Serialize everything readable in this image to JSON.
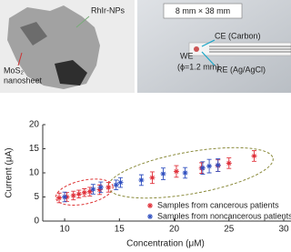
{
  "photos": {
    "left": {
      "label_particles": "RhIr-NPs",
      "label_sheet": [
        "MoS₂",
        "nanosheet"
      ]
    },
    "right": {
      "size": "8 mm × 38 mm",
      "ce": "CE (Carbon)",
      "we": [
        "WE",
        "(ϕ=1.2 mm)"
      ],
      "re": "RE (Ag/AgCl)"
    }
  },
  "chart_data": {
    "type": "scatter",
    "xlabel": "Concentration (μM)",
    "ylabel": "Current (μA)",
    "xlim": [
      8,
      30
    ],
    "ylim": [
      0,
      20
    ],
    "xticks": [
      10,
      15,
      20,
      25,
      30
    ],
    "yticks": [
      0,
      5,
      10,
      15,
      20
    ],
    "legend": "lower right",
    "series": [
      {
        "name": "Samples from cancerous patients",
        "color": "#e0303a",
        "x": [
          9.5,
          10.2,
          10.8,
          11.3,
          11.8,
          12.3,
          13.2,
          14.0,
          18.0,
          20.2,
          22.5,
          24.0,
          25.0,
          27.3
        ],
        "values": [
          4.8,
          5.0,
          5.3,
          5.6,
          5.9,
          6.1,
          6.5,
          7.0,
          9.0,
          10.3,
          11.0,
          11.5,
          12.0,
          13.5
        ],
        "errors": [
          1.0,
          0.9,
          0.9,
          0.8,
          0.8,
          0.9,
          1.0,
          1.0,
          1.2,
          1.2,
          1.1,
          1.2,
          1.1,
          1.1
        ]
      },
      {
        "name": "Samples from noncancerous patients",
        "color": "#3050c0",
        "x": [
          10.0,
          12.6,
          13.3,
          14.7,
          15.1,
          17.0,
          19.0,
          21.0,
          22.6,
          23.2,
          24.0
        ],
        "values": [
          5.0,
          6.6,
          7.0,
          7.5,
          8.0,
          8.5,
          9.8,
          10.0,
          11.0,
          11.4,
          11.6
        ],
        "errors": [
          1.0,
          1.0,
          1.1,
          1.0,
          1.0,
          1.1,
          1.2,
          1.1,
          1.3,
          1.4,
          1.3
        ]
      }
    ]
  }
}
